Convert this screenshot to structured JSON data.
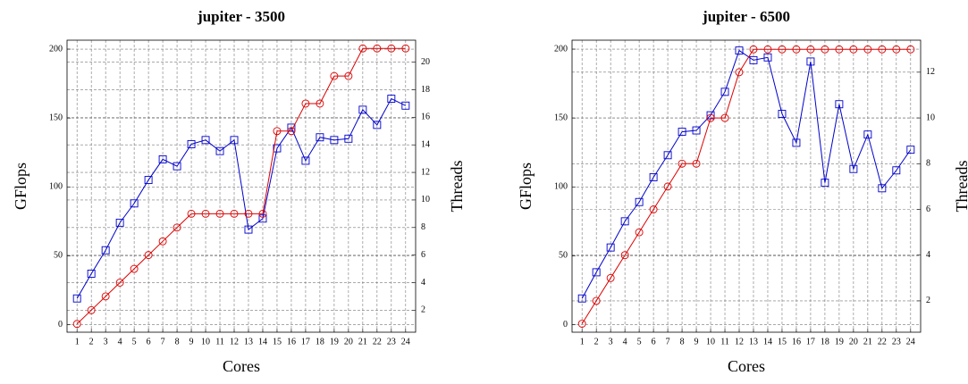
{
  "chart_data": [
    {
      "type": "line",
      "title": "jupiter - 3500",
      "xlabel": "Cores",
      "ylabel": "GFlops",
      "y2label": "Threads",
      "x": [
        1,
        2,
        3,
        4,
        5,
        6,
        7,
        8,
        9,
        10,
        11,
        12,
        13,
        14,
        15,
        16,
        17,
        18,
        19,
        20,
        21,
        22,
        23,
        24
      ],
      "xlim": [
        0.3,
        24.7
      ],
      "xticks": [
        1,
        2,
        3,
        4,
        5,
        6,
        7,
        8,
        9,
        10,
        11,
        12,
        13,
        14,
        15,
        16,
        17,
        18,
        19,
        20,
        21,
        22,
        23,
        24
      ],
      "ylim": [
        -5.5,
        206.5
      ],
      "yticks": [
        0,
        50,
        100,
        150,
        200
      ],
      "y2lim": [
        0.4,
        21.6
      ],
      "y2ticks": [
        2,
        4,
        6,
        8,
        10,
        12,
        14,
        16,
        18,
        20
      ],
      "grid": true,
      "series": [
        {
          "name": "GFlops",
          "color": "#0000cc",
          "marker": "square",
          "values": [
            19,
            37,
            54,
            74,
            88,
            105,
            120,
            115,
            131,
            134,
            126,
            134,
            69,
            77,
            128,
            143,
            119,
            136,
            134,
            135,
            156,
            145,
            164,
            159
          ]
        },
        {
          "name": "Threads",
          "color": "#dd0000",
          "marker": "circle",
          "axis": "y2",
          "values": [
            1,
            2,
            3,
            4,
            5,
            6,
            7,
            8,
            9,
            9,
            9,
            9,
            9,
            9,
            15,
            15,
            17,
            17,
            19,
            19,
            21,
            21,
            21,
            21
          ]
        }
      ]
    },
    {
      "type": "line",
      "title": "jupiter - 6500",
      "xlabel": "Cores",
      "ylabel": "GFlops",
      "y2label": "Threads",
      "x": [
        1,
        2,
        3,
        4,
        5,
        6,
        7,
        8,
        9,
        10,
        11,
        12,
        13,
        14,
        15,
        16,
        17,
        18,
        19,
        20,
        21,
        22,
        23,
        24
      ],
      "xlim": [
        0.3,
        24.7
      ],
      "xticks": [
        1,
        2,
        3,
        4,
        5,
        6,
        7,
        8,
        9,
        10,
        11,
        12,
        13,
        14,
        15,
        16,
        17,
        18,
        19,
        20,
        21,
        22,
        23,
        24
      ],
      "ylim": [
        -5.5,
        206.5
      ],
      "yticks": [
        0,
        50,
        100,
        150,
        200
      ],
      "y2lim": [
        0.63,
        13.4
      ],
      "y2ticks": [
        2,
        4,
        6,
        8,
        10,
        12
      ],
      "grid": true,
      "series": [
        {
          "name": "GFlops",
          "color": "#0000cc",
          "marker": "square",
          "values": [
            19,
            38,
            56,
            75,
            89,
            107,
            123,
            140,
            141,
            152,
            169,
            199,
            192,
            194,
            153,
            132,
            191,
            103,
            160,
            113,
            138,
            99,
            112,
            127
          ]
        },
        {
          "name": "Threads",
          "color": "#dd0000",
          "marker": "circle",
          "axis": "y2",
          "values": [
            1,
            2,
            3,
            4,
            5,
            6,
            7,
            8,
            8,
            10,
            10,
            12,
            13,
            13,
            13,
            13,
            13,
            13,
            13,
            13,
            13,
            13,
            13,
            13
          ]
        }
      ]
    }
  ]
}
